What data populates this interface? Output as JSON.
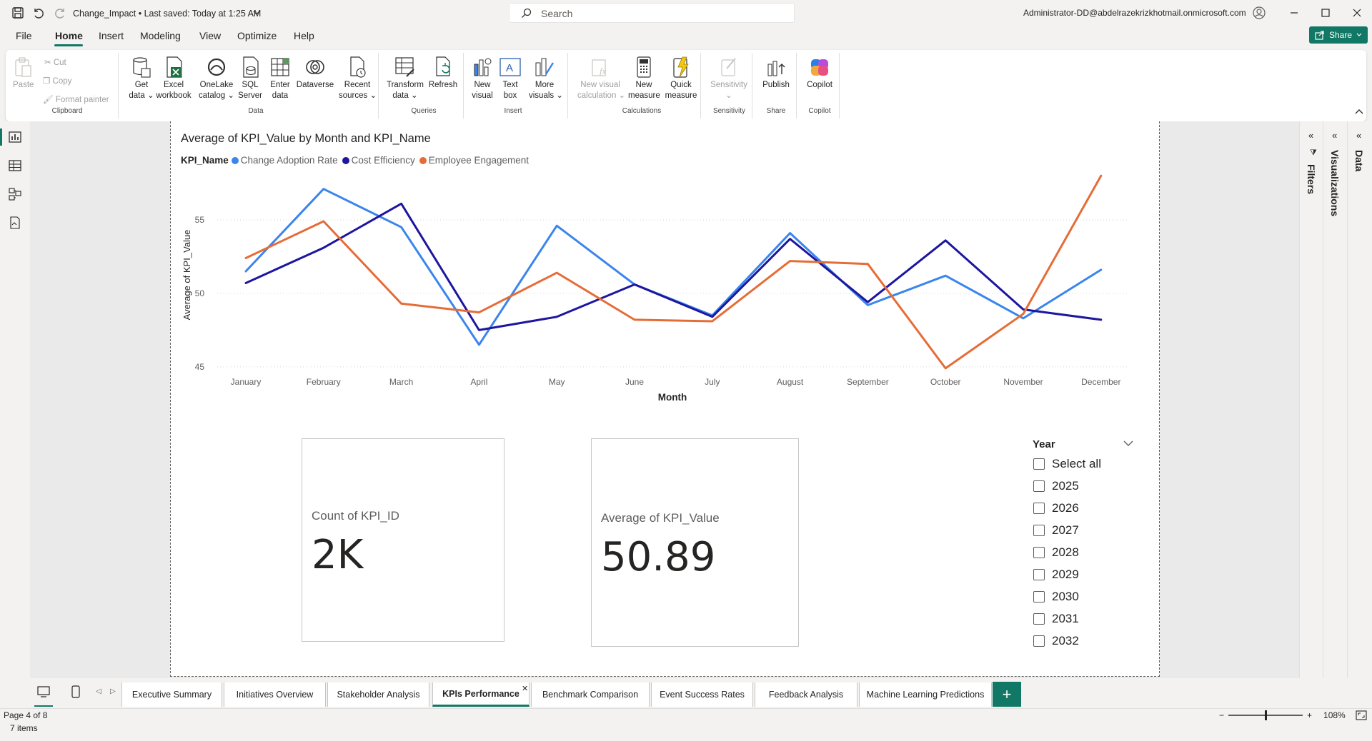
{
  "titlebar": {
    "doc_title": "Change_Impact • Last saved: Today at 1:25 AM",
    "search_placeholder": "Search",
    "user": "Administrator-DD@abdelrazekrizkhotmail.onmicrosoft.com"
  },
  "menu": {
    "file": "File",
    "home": "Home",
    "insert": "Insert",
    "modeling": "Modeling",
    "view": "View",
    "optimize": "Optimize",
    "help": "Help",
    "share": "Share"
  },
  "ribbon": {
    "clipboard": {
      "paste": "Paste",
      "cut": "Cut",
      "copy": "Copy",
      "format_painter": "Format painter",
      "group": "Clipboard"
    },
    "data": {
      "get_data_1": "Get",
      "get_data_2": "data",
      "excel_1": "Excel",
      "excel_2": "workbook",
      "onelake_1": "OneLake",
      "onelake_2": "catalog",
      "sql_1": "SQL",
      "sql_2": "Server",
      "enter_1": "Enter",
      "enter_2": "data",
      "dataverse": "Dataverse",
      "recent_1": "Recent",
      "recent_2": "sources",
      "group": "Data"
    },
    "queries": {
      "transform_1": "Transform",
      "transform_2": "data",
      "refresh": "Refresh",
      "group": "Queries"
    },
    "insert": {
      "new_visual_1": "New",
      "new_visual_2": "visual",
      "text_box_1": "Text",
      "text_box_2": "box",
      "more_visuals_1": "More",
      "more_visuals_2": "visuals",
      "group": "Insert"
    },
    "calculations": {
      "new_visual_calc_1": "New visual",
      "new_visual_calc_2": "calculation",
      "new_measure_1": "New",
      "new_measure_2": "measure",
      "quick_measure_1": "Quick",
      "quick_measure_2": "measure",
      "group": "Calculations"
    },
    "sensitivity": {
      "label": "Sensitivity",
      "group": "Sensitivity"
    },
    "share": {
      "publish": "Publish",
      "group": "Share"
    },
    "copilot": {
      "label": "Copilot",
      "group": "Copilot"
    }
  },
  "chart": {
    "title": "Average of KPI_Value by Month and KPI_Name",
    "legend_title": "KPI_Name",
    "ylabel": "Average of KPI_Value",
    "xlabel": "Month"
  },
  "chart_data": {
    "type": "line",
    "title": "Average of KPI_Value by Month and KPI_Name",
    "xlabel": "Month",
    "ylabel": "Average of KPI_Value",
    "ylim": [
      44.7,
      58.3
    ],
    "yticks": [
      45,
      50,
      55
    ],
    "categories": [
      "January",
      "February",
      "March",
      "April",
      "May",
      "June",
      "July",
      "August",
      "September",
      "October",
      "November",
      "December"
    ],
    "legend_placement": "top-left",
    "grid": true,
    "series": [
      {
        "name": "Change Adoption Rate",
        "color": "#3a85ee",
        "values": [
          51.5,
          57.1,
          54.5,
          46.5,
          54.6,
          50.6,
          48.5,
          54.1,
          49.2,
          51.2,
          48.3,
          51.6
        ]
      },
      {
        "name": "Cost Efficiency",
        "color": "#1d169f",
        "values": [
          50.7,
          53.1,
          56.1,
          47.5,
          48.4,
          50.6,
          48.4,
          53.7,
          49.4,
          53.6,
          48.9,
          48.2
        ]
      },
      {
        "name": "Employee Engagement",
        "color": "#e66c37",
        "values": [
          52.4,
          54.9,
          49.3,
          48.7,
          51.4,
          48.2,
          48.1,
          52.2,
          52.0,
          44.9,
          48.6,
          58.0
        ]
      }
    ]
  },
  "cards": {
    "count": {
      "label": "Count of KPI_ID",
      "value": "2K"
    },
    "average": {
      "label": "Average of KPI_Value",
      "value": "50.89"
    }
  },
  "slicer": {
    "title": "Year",
    "options": [
      "Select all",
      "2025",
      "2026",
      "2027",
      "2028",
      "2029",
      "2030",
      "2031",
      "2032"
    ]
  },
  "panes": {
    "filters": "Filters",
    "visualizations": "Visualizations",
    "data": "Data"
  },
  "tabs": [
    "Executive Summary",
    "Initiatives Overview",
    "Stakeholder Analysis",
    "KPIs Performance",
    "Benchmark Comparison",
    "Event Success Rates",
    "Feedback Analysis",
    "Machine Learning Predictions"
  ],
  "active_tab": "KPIs Performance",
  "status": {
    "page": "Page 4 of 8",
    "items": "7 items",
    "zoom": "108%"
  },
  "colors": {
    "accent": "#117865"
  }
}
